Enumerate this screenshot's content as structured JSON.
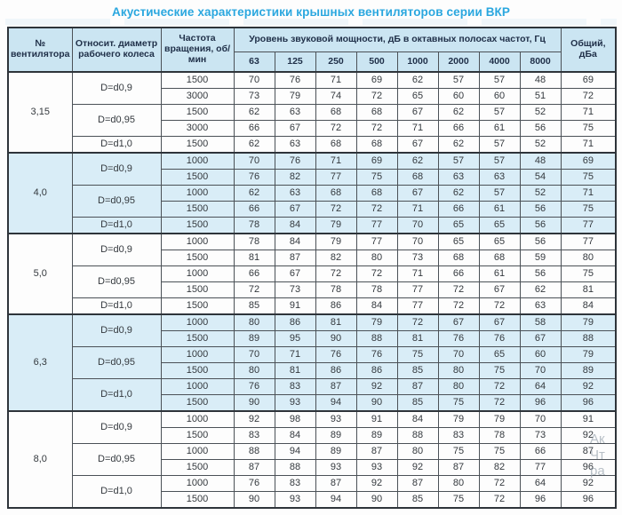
{
  "page": {
    "title": "Акустические характеристики крышных вентиляторов серии ВКР"
  },
  "colors": {
    "title": "#2aa7df",
    "header_bg": "#cbe5f2",
    "shaded_row_bg": "#d9edf7",
    "border": "#4b5157",
    "text": "#34393e",
    "header_text": "#203049"
  },
  "table": {
    "col_headers": {
      "fan": "№ вентилятора",
      "diameter": "Относит. диаметр рабочего колеса",
      "speed": "Частота вращения, об/мин",
      "octave_title": "Уровень звуковой мощности, дБ в октавных полосах частот, Гц",
      "octave_bands": [
        "63",
        "125",
        "250",
        "500",
        "1000",
        "2000",
        "4000",
        "8000"
      ],
      "total": "Общий, дБа"
    },
    "groups": [
      {
        "fan": "3,15",
        "shaded": false,
        "subgroups": [
          {
            "diameter": "D=d0,9",
            "rows": [
              {
                "speed": "1500",
                "levels": [
                  70,
                  76,
                  71,
                  69,
                  62,
                  57,
                  57,
                  48
                ],
                "total": 69
              },
              {
                "speed": "3000",
                "levels": [
                  73,
                  79,
                  74,
                  72,
                  65,
                  60,
                  60,
                  51
                ],
                "total": 72
              }
            ]
          },
          {
            "diameter": "D=d0,95",
            "rows": [
              {
                "speed": "1500",
                "levels": [
                  62,
                  63,
                  68,
                  68,
                  67,
                  62,
                  57,
                  52
                ],
                "total": 71
              },
              {
                "speed": "3000",
                "levels": [
                  66,
                  67,
                  72,
                  72,
                  71,
                  66,
                  61,
                  56
                ],
                "total": 75
              }
            ]
          },
          {
            "diameter": "D=d1,0",
            "rows": [
              {
                "speed": "1500",
                "levels": [
                  62,
                  63,
                  68,
                  68,
                  67,
                  62,
                  57,
                  52
                ],
                "total": 71
              }
            ]
          }
        ]
      },
      {
        "fan": "4,0",
        "shaded": true,
        "subgroups": [
          {
            "diameter": "D=d0,9",
            "rows": [
              {
                "speed": "1000",
                "levels": [
                  70,
                  76,
                  71,
                  69,
                  62,
                  57,
                  57,
                  48
                ],
                "total": 69
              },
              {
                "speed": "1500",
                "levels": [
                  76,
                  82,
                  77,
                  75,
                  68,
                  63,
                  63,
                  54
                ],
                "total": 75
              }
            ]
          },
          {
            "diameter": "D=d0,95",
            "rows": [
              {
                "speed": "1000",
                "levels": [
                  62,
                  63,
                  68,
                  68,
                  67,
                  62,
                  57,
                  52
                ],
                "total": 71
              },
              {
                "speed": "1500",
                "levels": [
                  66,
                  67,
                  72,
                  72,
                  71,
                  66,
                  61,
                  56
                ],
                "total": 75
              }
            ]
          },
          {
            "diameter": "D=d1,0",
            "rows": [
              {
                "speed": "1500",
                "levels": [
                  78,
                  84,
                  79,
                  77,
                  70,
                  65,
                  65,
                  56
                ],
                "total": 77
              }
            ]
          }
        ]
      },
      {
        "fan": "5,0",
        "shaded": false,
        "subgroups": [
          {
            "diameter": "D=d0,9",
            "rows": [
              {
                "speed": "1000",
                "levels": [
                  78,
                  84,
                  79,
                  77,
                  70,
                  65,
                  65,
                  56
                ],
                "total": 77
              },
              {
                "speed": "1500",
                "levels": [
                  81,
                  87,
                  82,
                  80,
                  73,
                  68,
                  68,
                  59
                ],
                "total": 80
              }
            ]
          },
          {
            "diameter": "D=d0,95",
            "rows": [
              {
                "speed": "1000",
                "levels": [
                  66,
                  67,
                  72,
                  72,
                  71,
                  66,
                  61,
                  56
                ],
                "total": 75
              },
              {
                "speed": "1500",
                "levels": [
                  72,
                  73,
                  78,
                  78,
                  77,
                  72,
                  67,
                  62
                ],
                "total": 81
              }
            ]
          },
          {
            "diameter": "D=d1,0",
            "rows": [
              {
                "speed": "1500",
                "levels": [
                  85,
                  91,
                  86,
                  84,
                  77,
                  72,
                  72,
                  63
                ],
                "total": 84
              }
            ]
          }
        ]
      },
      {
        "fan": "6,3",
        "shaded": true,
        "subgroups": [
          {
            "diameter": "D=d0,9",
            "rows": [
              {
                "speed": "1000",
                "levels": [
                  80,
                  86,
                  81,
                  79,
                  72,
                  67,
                  67,
                  58
                ],
                "total": 79
              },
              {
                "speed": "1500",
                "levels": [
                  89,
                  95,
                  90,
                  88,
                  81,
                  76,
                  76,
                  67
                ],
                "total": 88
              }
            ]
          },
          {
            "diameter": "D=d0,95",
            "rows": [
              {
                "speed": "1000",
                "levels": [
                  70,
                  71,
                  76,
                  76,
                  75,
                  70,
                  65,
                  60
                ],
                "total": 79
              },
              {
                "speed": "1500",
                "levels": [
                  80,
                  81,
                  86,
                  86,
                  85,
                  80,
                  75,
                  70
                ],
                "total": 89
              }
            ]
          },
          {
            "diameter": "D=d1,0",
            "rows": [
              {
                "speed": "1000",
                "levels": [
                  76,
                  83,
                  87,
                  92,
                  87,
                  80,
                  72,
                  64
                ],
                "total": 92
              },
              {
                "speed": "1500",
                "levels": [
                  90,
                  93,
                  94,
                  90,
                  85,
                  75,
                  72,
                  96
                ],
                "total": 96
              }
            ]
          }
        ]
      },
      {
        "fan": "8,0",
        "shaded": false,
        "subgroups": [
          {
            "diameter": "D=d0,9",
            "rows": [
              {
                "speed": "1000",
                "levels": [
                  92,
                  98,
                  93,
                  91,
                  84,
                  79,
                  79,
                  70
                ],
                "total": 91
              },
              {
                "speed": "1500",
                "levels": [
                  83,
                  84,
                  89,
                  89,
                  88,
                  83,
                  78,
                  73
                ],
                "total": 92
              }
            ]
          },
          {
            "diameter": "D=d0,95",
            "rows": [
              {
                "speed": "1000",
                "levels": [
                  88,
                  94,
                  89,
                  87,
                  80,
                  75,
                  75,
                  66
                ],
                "total": 87
              },
              {
                "speed": "1500",
                "levels": [
                  87,
                  88,
                  93,
                  93,
                  92,
                  87,
                  82,
                  77
                ],
                "total": 96
              }
            ]
          },
          {
            "diameter": "D=d1,0",
            "rows": [
              {
                "speed": "1000",
                "levels": [
                  76,
                  83,
                  87,
                  92,
                  87,
                  80,
                  72,
                  64
                ],
                "total": 92
              },
              {
                "speed": "1500",
                "levels": [
                  90,
                  93,
                  94,
                  90,
                  85,
                  75,
                  72,
                  96
                ],
                "total": 96
              }
            ]
          }
        ]
      }
    ]
  },
  "watermark": {
    "lines": [
      "Ак",
      "Чт",
      "ра"
    ]
  }
}
